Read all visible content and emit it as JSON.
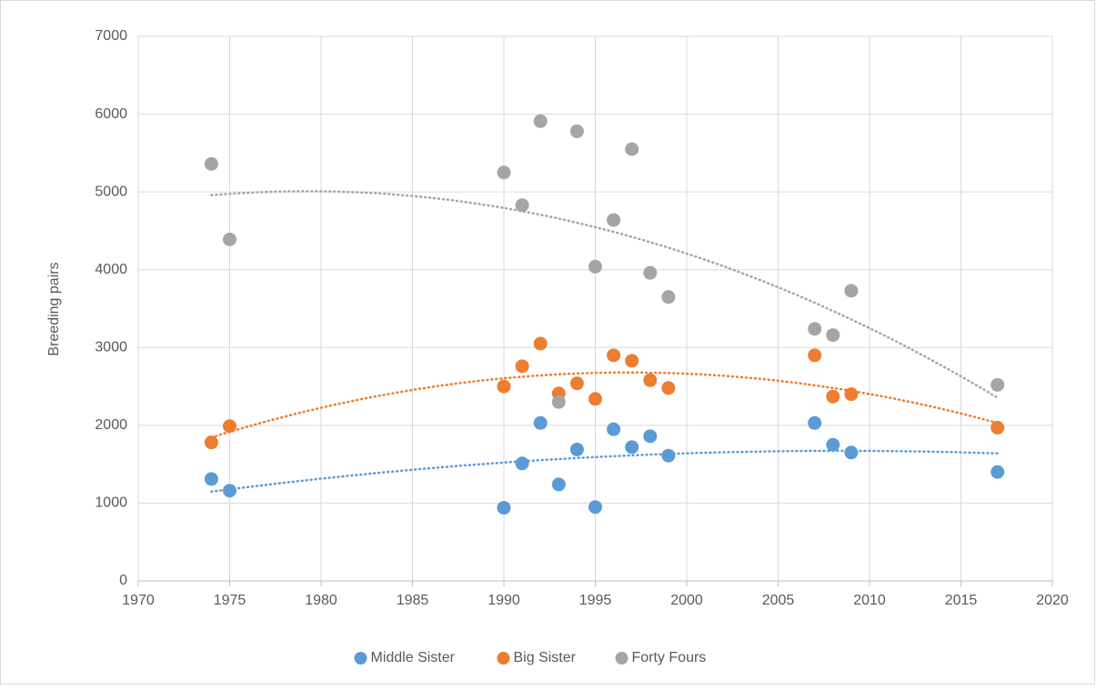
{
  "chart_data": {
    "type": "scatter",
    "ylabel": "Breeding pairs",
    "x": [
      1974,
      1975,
      1990,
      1991,
      1992,
      1993,
      1994,
      1995,
      1996,
      1997,
      1998,
      1999,
      2007,
      2008,
      2009,
      2017
    ],
    "series": [
      {
        "name": "Middle Sister",
        "color": "#5b9bd5",
        "values": [
          1310,
          1160,
          940,
          1510,
          2030,
          1240,
          1690,
          950,
          1950,
          1720,
          1860,
          1610,
          2030,
          1750,
          1650,
          1400
        ]
      },
      {
        "name": "Big Sister",
        "color": "#ed7d31",
        "values": [
          1780,
          1990,
          2500,
          2760,
          3050,
          2410,
          2540,
          2340,
          2900,
          2830,
          2580,
          2480,
          2900,
          2370,
          2400,
          1970
        ]
      },
      {
        "name": "Forty Fours",
        "color": "#a5a5a5",
        "values": [
          5360,
          4390,
          5250,
          4830,
          5910,
          2300,
          5780,
          4040,
          4640,
          5550,
          3960,
          3650,
          3240,
          3160,
          3730,
          2520
        ]
      }
    ],
    "xlim": [
      1970,
      2020
    ],
    "xticks": [
      1970,
      1975,
      1980,
      1985,
      1990,
      1995,
      2000,
      2005,
      2010,
      2015,
      2020
    ],
    "ylim": [
      0,
      7000
    ],
    "yticks": [
      0,
      1000,
      2000,
      3000,
      4000,
      5000,
      6000,
      7000
    ],
    "grid": true,
    "trendline": "polynomial",
    "trendline_order": 2,
    "legend": "bottom"
  }
}
